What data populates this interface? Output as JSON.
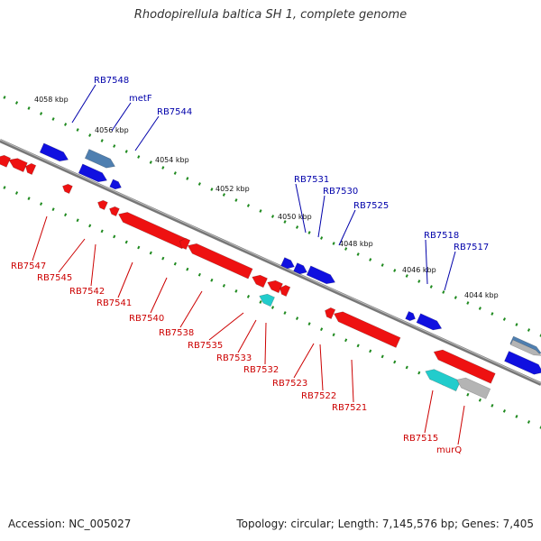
{
  "title": "Rhodopirellula baltica SH 1, complete genome",
  "footer": {
    "accession": "Accession: NC_005027",
    "summary": "Topology: circular; Length: 7,145,576 bp; Genes: 7,405"
  },
  "colors": {
    "forward": "#1010e0",
    "reverse": "#ee1111",
    "rna_cyan": "#22cccc",
    "steel": "#4f7fb0",
    "grey": "#b4b4b4",
    "backbone": "#777777",
    "tick": "#1f8a1f",
    "forward_label": "#0000aa",
    "reverse_label": "#cc0000"
  },
  "scale_ticks": [
    "4058 kbp",
    "4056 kbp",
    "4054 kbp",
    "4052 kbp",
    "4050 kbp",
    "4048 kbp",
    "4046 kbp",
    "4044 kbp"
  ],
  "forward_labels": [
    "RB7548",
    "metF",
    "RB7544",
    "RB7531",
    "RB7530",
    "RB7525",
    "RB7518",
    "RB7517"
  ],
  "reverse_labels": [
    "RB7547",
    "RB7545",
    "RB7542",
    "RB7541",
    "RB7540",
    "RB7538",
    "RB7535",
    "RB7533",
    "RB7532",
    "RB7523",
    "RB7522",
    "RB7521",
    "RB7515",
    "murQ"
  ]
}
